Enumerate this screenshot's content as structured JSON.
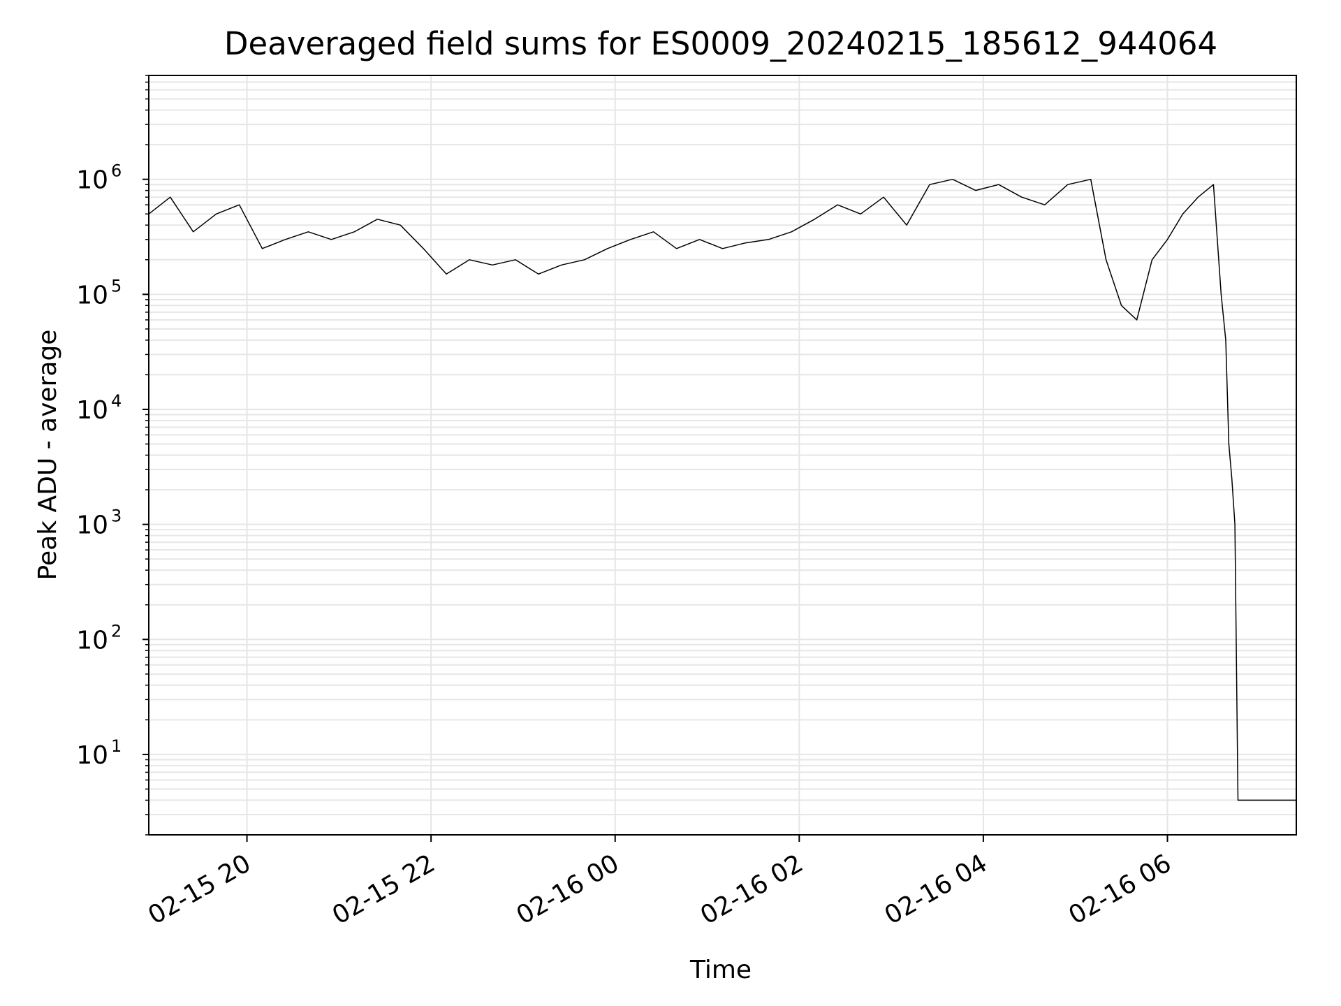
{
  "chart_data": {
    "type": "line",
    "title": "Deaveraged field sums for ES0009_20240215_185612_944064",
    "xlabel": "Time",
    "ylabel": "Peak ADU - average",
    "yscale": "log",
    "ylim": [
      2,
      8000000
    ],
    "xlim": [
      "2024-02-15 18:56",
      "2024-02-16 07:24"
    ],
    "grid": true,
    "x_ticks": [
      {
        "value": "2024-02-15 20:00",
        "label": "02-15 20"
      },
      {
        "value": "2024-02-15 22:00",
        "label": "02-15 22"
      },
      {
        "value": "2024-02-16 00:00",
        "label": "02-16 00"
      },
      {
        "value": "2024-02-16 02:00",
        "label": "02-16 02"
      },
      {
        "value": "2024-02-16 04:00",
        "label": "02-16 04"
      },
      {
        "value": "2024-02-16 06:00",
        "label": "02-16 06"
      }
    ],
    "y_ticks": [
      {
        "value": 10,
        "base": "10",
        "exp": "1"
      },
      {
        "value": 100,
        "base": "10",
        "exp": "2"
      },
      {
        "value": 1000,
        "base": "10",
        "exp": "3"
      },
      {
        "value": 10000,
        "base": "10",
        "exp": "4"
      },
      {
        "value": 100000,
        "base": "10",
        "exp": "5"
      },
      {
        "value": 1000000,
        "base": "10",
        "exp": "6"
      }
    ],
    "series": [
      {
        "color": "#000000",
        "x": [
          "2024-02-15 18:56",
          "2024-02-15 19:10",
          "2024-02-15 19:25",
          "2024-02-15 19:40",
          "2024-02-15 19:55",
          "2024-02-15 20:10",
          "2024-02-15 20:25",
          "2024-02-15 20:40",
          "2024-02-15 20:55",
          "2024-02-15 21:10",
          "2024-02-15 21:25",
          "2024-02-15 21:40",
          "2024-02-15 21:55",
          "2024-02-15 22:10",
          "2024-02-15 22:25",
          "2024-02-15 22:40",
          "2024-02-15 22:55",
          "2024-02-15 23:10",
          "2024-02-15 23:25",
          "2024-02-15 23:40",
          "2024-02-15 23:55",
          "2024-02-16 00:10",
          "2024-02-16 00:25",
          "2024-02-16 00:40",
          "2024-02-16 00:55",
          "2024-02-16 01:10",
          "2024-02-16 01:25",
          "2024-02-16 01:40",
          "2024-02-16 01:55",
          "2024-02-16 02:10",
          "2024-02-16 02:25",
          "2024-02-16 02:40",
          "2024-02-16 02:55",
          "2024-02-16 03:10",
          "2024-02-16 03:25",
          "2024-02-16 03:40",
          "2024-02-16 03:55",
          "2024-02-16 04:10",
          "2024-02-16 04:25",
          "2024-02-16 04:40",
          "2024-02-16 04:55",
          "2024-02-16 05:10",
          "2024-02-16 05:20",
          "2024-02-16 05:30",
          "2024-02-16 05:40",
          "2024-02-16 05:50",
          "2024-02-16 06:00",
          "2024-02-16 06:10",
          "2024-02-16 06:20",
          "2024-02-16 06:30",
          "2024-02-16 06:35",
          "2024-02-16 06:38",
          "2024-02-16 06:40",
          "2024-02-16 06:42",
          "2024-02-16 06:44",
          "2024-02-16 06:46",
          "2024-02-16 06:48",
          "2024-02-16 06:50",
          "2024-02-16 06:52",
          "2024-02-16 07:00",
          "2024-02-16 07:10",
          "2024-02-16 07:24"
        ],
        "y": [
          500000,
          700000,
          350000,
          500000,
          600000,
          250000,
          300000,
          350000,
          300000,
          350000,
          450000,
          400000,
          250000,
          150000,
          200000,
          180000,
          200000,
          150000,
          180000,
          200000,
          250000,
          300000,
          350000,
          250000,
          300000,
          250000,
          280000,
          300000,
          350000,
          450000,
          600000,
          500000,
          700000,
          400000,
          900000,
          1000000,
          800000,
          900000,
          700000,
          600000,
          900000,
          1000000,
          200000,
          80000,
          60000,
          200000,
          300000,
          500000,
          700000,
          900000,
          100000,
          40000,
          5000,
          2500,
          1000,
          4,
          4,
          4,
          4,
          4,
          4,
          4
        ]
      }
    ]
  }
}
